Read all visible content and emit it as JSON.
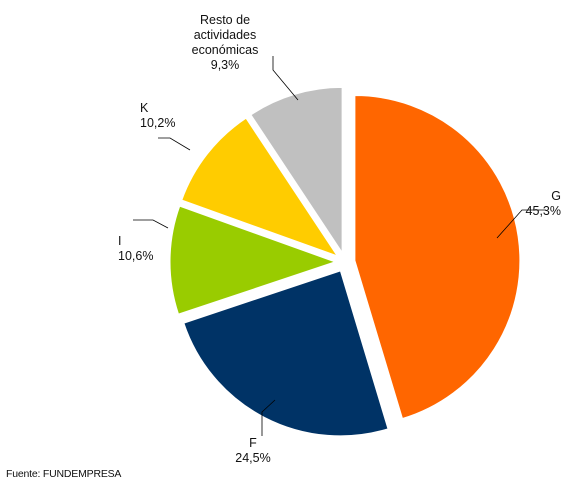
{
  "chart_data": {
    "type": "pie",
    "title": "",
    "slices": [
      {
        "label": "G",
        "value_label": "45,3%",
        "value": 45.3,
        "color": "#FF6600"
      },
      {
        "label": "F",
        "value_label": "24,5%",
        "value": 24.5,
        "color": "#003366"
      },
      {
        "label": "I",
        "value_label": "10,6%",
        "value": 10.6,
        "color": "#99CC00"
      },
      {
        "label": "K",
        "value_label": "10,2%",
        "value": 10.2,
        "color": "#FFCC00"
      },
      {
        "label": "Resto de\nactividades\neconómicas",
        "value_label": "9,3%",
        "value": 9.3,
        "color": "#C0C0C0"
      }
    ],
    "start": "12 o'clock",
    "direction": "clockwise",
    "exploded": true,
    "legend": "none"
  },
  "source_note": "Fuente: FUNDEMPRESA"
}
